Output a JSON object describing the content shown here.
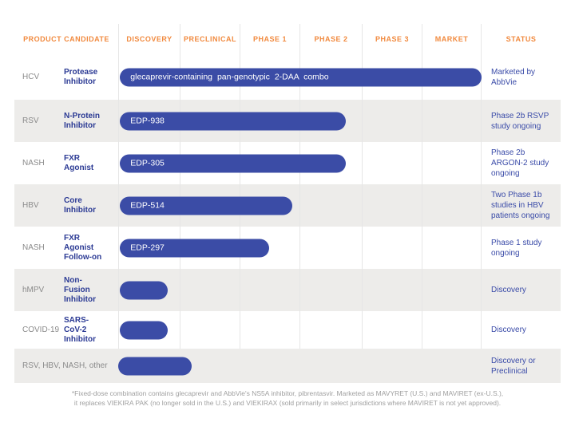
{
  "colors": {
    "orange": "#F18A3F",
    "navy": "#2B3A94",
    "status-blue": "#3A4BA8",
    "bar-blue": "#3B4CA6",
    "zebra": "#EDECEA",
    "grid": "#E6E6E6",
    "gray-text": "#8B8B8B",
    "footnote-gray": "#A0A0A0"
  },
  "header": {
    "columns": [
      "PRODUCT CANDIDATE",
      "DISCOVERY",
      "PRECLINICAL",
      "PHASE 1",
      "PHASE 2",
      "PHASE 3",
      "MARKET",
      "STATUS"
    ]
  },
  "rows": [
    {
      "disease": "HCV",
      "mechanism": "Protease\nInhibitor",
      "bar": {
        "label": "glecaprevir-containing pan-genotypic 2-DAA combo",
        "start": 0.03,
        "end": 6.0
      },
      "status": "Marketed by\nAbbVie"
    },
    {
      "disease": "RSV",
      "mechanism": "N-Protein\nInhibitor",
      "bar": {
        "label": "EDP-938",
        "start": 0.03,
        "end": 3.74
      },
      "status": "Phase 2b RSVP\nstudy ongoing"
    },
    {
      "disease": "NASH",
      "mechanism": "FXR\nAgonist",
      "bar": {
        "label": "EDP-305",
        "start": 0.03,
        "end": 3.74
      },
      "status": "Phase 2b\nARGON-2 study\nongoing"
    },
    {
      "disease": "HBV",
      "mechanism": "Core\nInhibitor",
      "bar": {
        "label": "EDP-514",
        "start": 0.03,
        "end": 2.88
      },
      "status": "Two Phase 1b\nstudies in HBV\npatients ongoing"
    },
    {
      "disease": "NASH",
      "mechanism": "FXR\nAgonist\nFollow-on",
      "bar": {
        "label": "EDP-297",
        "start": 0.03,
        "end": 2.5
      },
      "status": "Phase 1 study\nongoing"
    },
    {
      "disease": "hMPV",
      "mechanism": "Non-\nFusion\nInhibitor",
      "bar": {
        "label": "",
        "start": 0.03,
        "end": 0.8
      },
      "status": "Discovery"
    },
    {
      "disease": "COVID-19",
      "mechanism": "SARS-\nCoV-2\nInhibitor",
      "bar": {
        "label": "",
        "start": 0.03,
        "end": 0.8
      },
      "status": "Discovery"
    },
    {
      "disease": "RSV, HBV, NASH, other",
      "mechanism": "",
      "bar": {
        "label": "",
        "start": 0.0,
        "end": 1.2
      },
      "status": "Discovery or\nPreclinical"
    }
  ],
  "footnote": {
    "line1": "*Fixed-dose combination contains glecaprevir and AbbVie's NS5A inhibitor, pibrentasvir. Marketed as MAVYRET (U.S.) and MAVIRET (ex-U.S.),",
    "line2": "it replaces VIEKIRA PAK (no longer sold in the U.S.) and VIEKIRAX (sold primarily in select jurisdictions where MAVIRET is not yet approved)."
  },
  "chart_data": {
    "type": "bar",
    "title": "",
    "x_stages": [
      "Discovery",
      "Preclinical",
      "Phase 1",
      "Phase 2",
      "Phase 3",
      "Market"
    ],
    "categories": [
      "HCV — Protease Inhibitor — glecaprevir-containing pan-genotypic 2-DAA combo",
      "RSV — N-Protein Inhibitor — EDP-938",
      "NASH — FXR Agonist — EDP-305",
      "HBV — Core Inhibitor — EDP-514",
      "NASH — FXR Agonist Follow-on — EDP-297",
      "hMPV — Non-Fusion Inhibitor",
      "COVID-19 — SARS-CoV-2 Inhibitor",
      "RSV, HBV, NASH, other"
    ],
    "values": [
      6.0,
      3.74,
      3.74,
      2.88,
      2.5,
      0.8,
      0.8,
      1.2
    ],
    "units": "pipeline stage reached, in column units (0 = start of Discovery, 6 = end of Market)",
    "statuses": [
      "Marketed by AbbVie",
      "Phase 2b RSVP study ongoing",
      "Phase 2b ARGON-2 study ongoing",
      "Two Phase 1b studies in HBV patients ongoing",
      "Phase 1 study ongoing",
      "Discovery",
      "Discovery",
      "Discovery or Preclinical"
    ]
  }
}
